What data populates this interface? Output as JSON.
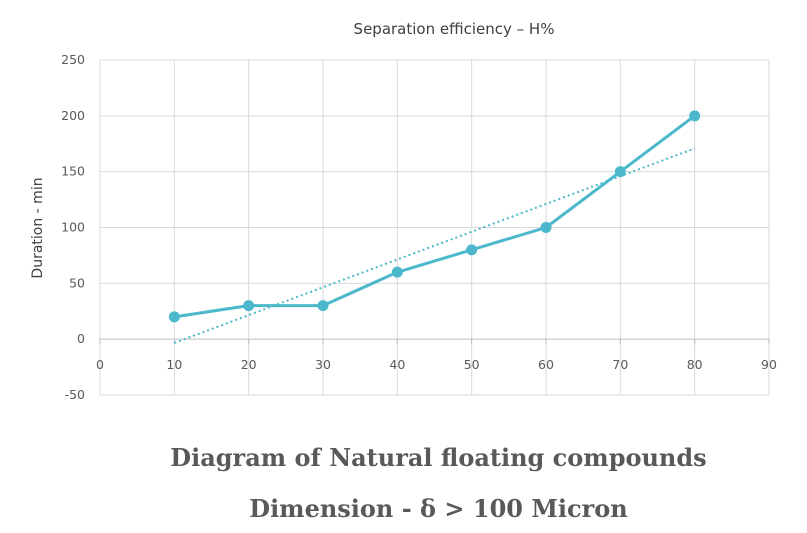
{
  "chart_data": {
    "type": "line",
    "title": "Separation efficiency – H%",
    "xlabel": "",
    "ylabel": "Duration - min",
    "xlim": [
      0,
      90
    ],
    "ylim": [
      -50,
      250
    ],
    "x_ticks": [
      0,
      10,
      20,
      30,
      40,
      50,
      60,
      70,
      80,
      90
    ],
    "y_ticks": [
      -50,
      0,
      50,
      100,
      150,
      200,
      250
    ],
    "grid": true,
    "series": [
      {
        "x": [
          10,
          20,
          30,
          40,
          50,
          60,
          70,
          80
        ],
        "y": [
          20,
          30,
          30,
          60,
          80,
          100,
          150,
          200
        ],
        "color": "#4bb8cc",
        "trendline": {
          "type": "linear",
          "style": "dotted"
        }
      }
    ]
  },
  "caption": {
    "line1": "Diagram of  Natural floating compounds",
    "line2": "Dimension - δ > 100 Micron"
  }
}
